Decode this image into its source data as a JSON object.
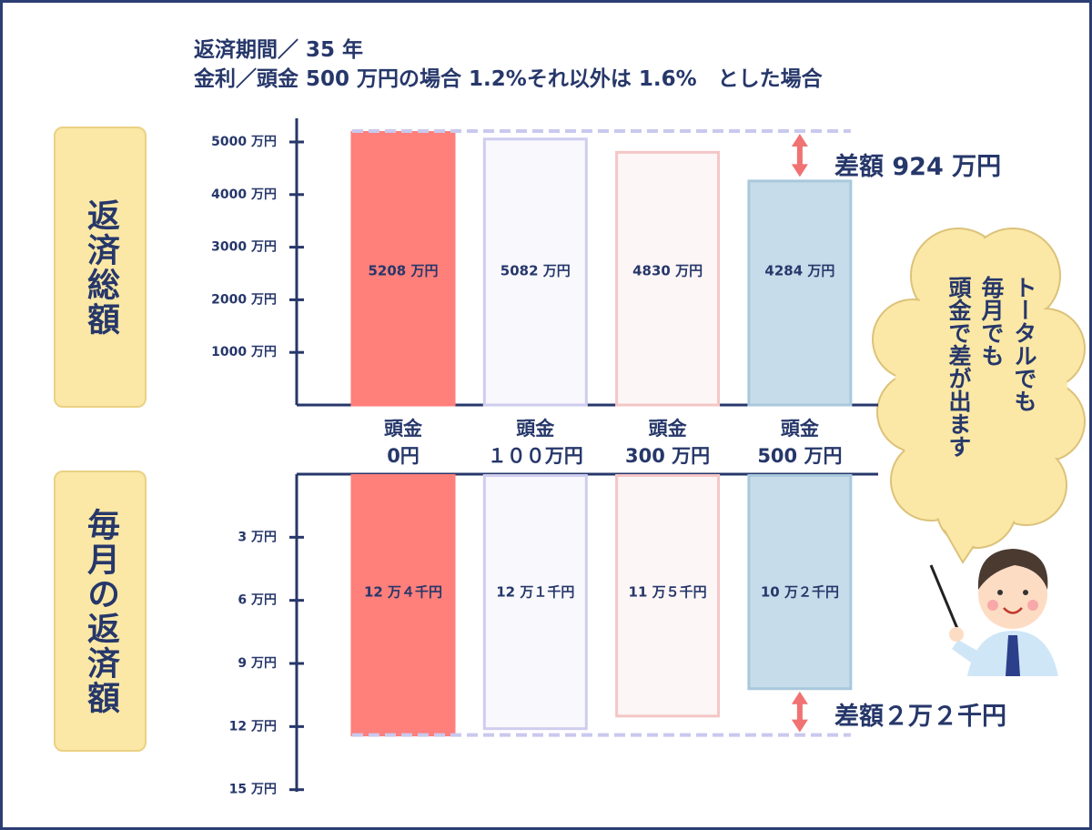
{
  "chart_data": [
    {
      "type": "bar",
      "title": "返済期間／ 35 年",
      "subtitle": "金利／頭金 500 万円の場合 1.2%それ以外は 1.6%　とした場合",
      "ylabel": "返済総額",
      "categories": [
        "頭金\n0円",
        "頭金\n１００万円",
        "頭金\n300 万円",
        "頭金\n500 万円"
      ],
      "values": [
        5208,
        5082,
        4830,
        4284
      ],
      "value_labels": [
        "5208 万円",
        "5082 万円",
        "4830 万円",
        "4284 万円"
      ],
      "colors": [
        "#ff7f7a",
        "#f8f8fd",
        "#fdf6f6",
        "#c7dcea"
      ],
      "edge_colors": [
        "#ff7f7a",
        "#cfcdee",
        "#f4c6c6",
        "#a9c8dc"
      ],
      "ylim": [
        0,
        5450
      ],
      "yticks": [
        {
          "value": 1000,
          "label": "1000 万円"
        },
        {
          "value": 2000,
          "label": "2000 万円"
        },
        {
          "value": 3000,
          "label": "3000 万円"
        },
        {
          "value": 4000,
          "label": "4000 万円"
        },
        {
          "value": 5000,
          "label": "5000 万円"
        }
      ],
      "annotations": [
        "差額 924 万円"
      ]
    },
    {
      "type": "bar",
      "ylabel": "毎月の返済額",
      "values": [
        12.4,
        12.1,
        11.5,
        10.2
      ],
      "value_labels": [
        "12 万４千円",
        "12 万１千円",
        "11 万５千円",
        "10 万２千円"
      ],
      "colors": [
        "#ff7f7a",
        "#f8f8fd",
        "#fdf6f6",
        "#c7dcea"
      ],
      "edge_colors": [
        "#ff7f7a",
        "#cfcdee",
        "#f4c6c6",
        "#a9c8dc"
      ],
      "y_inverted": true,
      "ylim": [
        0,
        15.1
      ],
      "yticks": [
        {
          "value": 3,
          "label": "3 万円"
        },
        {
          "value": 6,
          "label": "6 万円"
        },
        {
          "value": 9,
          "label": "9 万円"
        },
        {
          "value": 12,
          "label": "12 万円"
        },
        {
          "value": 15,
          "label": "15 万円"
        }
      ],
      "annotations": [
        "差額２万２千円"
      ]
    }
  ],
  "speech_bubble": [
    "トータルでも",
    "毎月でも",
    "頭金で差が出ます"
  ]
}
